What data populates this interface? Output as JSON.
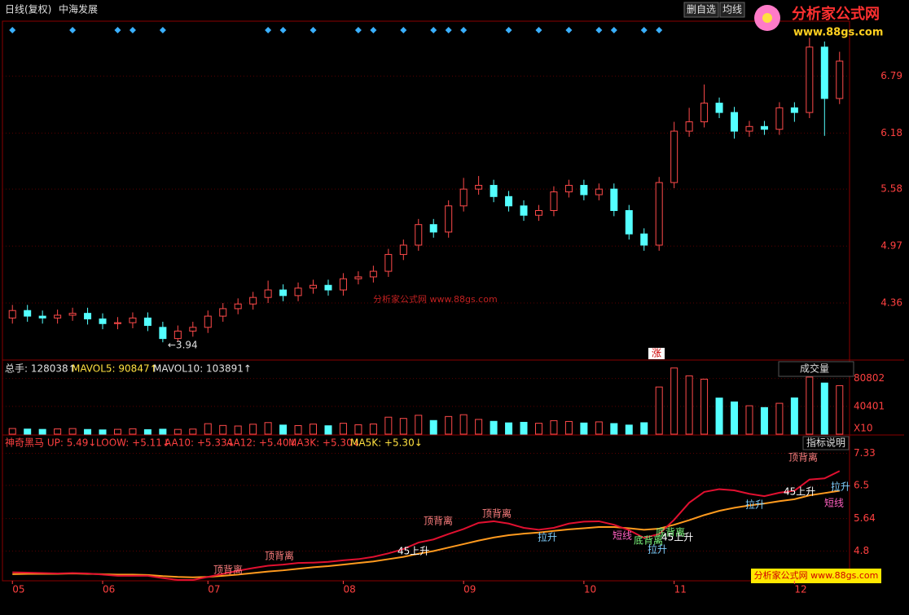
{
  "header": {
    "period": "日线(复权)",
    "stock": "中海发展",
    "btn_fav": "删自选",
    "btn_ma": "均线",
    "logo": "分析家公式网",
    "logo_url": "www.88gs.com",
    "watermark": "分析家公式网 www.88gs.com",
    "footer_brand": "分析家公式网 www.88gs.com"
  },
  "chart_data": [
    {
      "type": "candlestick",
      "low_label": "←3.94",
      "event_label": "涨",
      "categories": [
        "05",
        null,
        null,
        null,
        null,
        null,
        "06",
        null,
        null,
        null,
        null,
        null,
        null,
        "07",
        null,
        null,
        null,
        null,
        null,
        null,
        null,
        null,
        "08",
        null,
        null,
        null,
        null,
        null,
        null,
        null,
        "09",
        null,
        null,
        null,
        null,
        null,
        null,
        null,
        "10",
        null,
        null,
        null,
        null,
        null,
        "11",
        null,
        null,
        null,
        null,
        null,
        null,
        null,
        "12",
        null,
        null,
        null
      ],
      "open": [
        4.2,
        4.28,
        4.22,
        4.2,
        4.23,
        4.25,
        4.19,
        4.14,
        4.15,
        4.2,
        4.1,
        3.98,
        4.06,
        4.1,
        4.22,
        4.3,
        4.35,
        4.42,
        4.5,
        4.44,
        4.52,
        4.55,
        4.5,
        4.62,
        4.64,
        4.7,
        4.88,
        4.98,
        5.2,
        5.12,
        5.4,
        5.58,
        5.62,
        5.5,
        5.4,
        5.3,
        5.35,
        5.55,
        5.62,
        5.52,
        5.58,
        5.35,
        5.1,
        4.98,
        5.65,
        6.2,
        6.3,
        6.5,
        6.4,
        6.2,
        6.25,
        6.22,
        6.45,
        6.4,
        7.1,
        6.55
      ],
      "high": [
        4.34,
        4.34,
        4.28,
        4.29,
        4.31,
        4.31,
        4.25,
        4.21,
        4.26,
        4.26,
        4.16,
        4.12,
        4.16,
        4.28,
        4.36,
        4.41,
        4.48,
        4.6,
        4.56,
        4.58,
        4.61,
        4.61,
        4.68,
        4.7,
        4.76,
        4.94,
        5.04,
        5.26,
        5.26,
        5.46,
        5.7,
        5.72,
        5.68,
        5.56,
        5.46,
        5.41,
        5.61,
        5.68,
        5.68,
        5.64,
        5.64,
        5.41,
        5.16,
        5.71,
        6.3,
        6.45,
        6.7,
        6.56,
        6.46,
        6.31,
        6.31,
        6.51,
        6.51,
        7.2,
        7.16,
        7.05
      ],
      "low": [
        4.14,
        4.16,
        4.14,
        4.14,
        4.17,
        4.13,
        4.08,
        4.08,
        4.09,
        4.06,
        3.94,
        3.95,
        4.0,
        4.04,
        4.16,
        4.24,
        4.29,
        4.36,
        4.38,
        4.38,
        4.46,
        4.44,
        4.44,
        4.56,
        4.58,
        4.64,
        4.82,
        4.92,
        5.06,
        5.06,
        5.34,
        5.52,
        5.44,
        5.34,
        5.24,
        5.24,
        5.29,
        5.49,
        5.46,
        5.46,
        5.29,
        5.04,
        4.92,
        4.92,
        5.59,
        6.14,
        6.24,
        6.34,
        6.12,
        6.14,
        6.16,
        6.16,
        6.3,
        6.34,
        6.15,
        6.49
      ],
      "close": [
        4.28,
        4.22,
        4.2,
        4.23,
        4.25,
        4.19,
        4.14,
        4.15,
        4.2,
        4.12,
        3.98,
        4.06,
        4.1,
        4.22,
        4.3,
        4.35,
        4.42,
        4.5,
        4.44,
        4.52,
        4.55,
        4.5,
        4.62,
        4.64,
        4.7,
        4.88,
        4.98,
        5.2,
        5.12,
        5.4,
        5.58,
        5.62,
        5.5,
        5.4,
        5.3,
        5.35,
        5.55,
        5.62,
        5.52,
        5.58,
        5.35,
        5.1,
        4.98,
        5.65,
        6.2,
        6.3,
        6.5,
        6.4,
        6.2,
        6.25,
        6.22,
        6.45,
        6.4,
        7.1,
        6.55,
        6.95
      ],
      "up_color": "#ff4a4a",
      "down_color": "#54ffff",
      "ylim": [
        3.75,
        7.36
      ],
      "yticks": [
        6.79,
        6.18,
        5.58,
        4.97,
        4.36
      ],
      "grid": true
    },
    {
      "type": "bar",
      "legend": [
        "总手: 128038↑",
        "MAVOL5: 90847↑",
        "MAVOL10: 103891↑"
      ],
      "selector": "成交量",
      "unit": "X10",
      "values": [
        8200,
        7400,
        6900,
        7600,
        8100,
        6800,
        6200,
        7000,
        7800,
        6500,
        7200,
        6900,
        7400,
        15200,
        12600,
        11800,
        14400,
        16800,
        13200,
        12400,
        14600,
        12200,
        15800,
        13600,
        14800,
        24600,
        22800,
        27400,
        19800,
        25600,
        28200,
        21400,
        18600,
        16400,
        17200,
        15800,
        19600,
        18400,
        16200,
        17800,
        15400,
        13200,
        16600,
        68400,
        96000,
        84600,
        79800,
        52400,
        46800,
        41200,
        38600,
        44800,
        52600,
        82800,
        74200,
        70400
      ],
      "ylim": [
        0,
        104000
      ],
      "yticks": [
        80802,
        40401
      ]
    },
    {
      "type": "line",
      "legend": [
        "神奇黑马 UP: 5.49↓",
        "LOOW: +5.11↓",
        "AA10: +5.33↓",
        "AA12: +5.40↓",
        "MA3K: +5.30↓",
        "MA5K: +5.30↓"
      ],
      "help": "指标说明",
      "annotations": [
        "顶背离",
        "顶背离",
        "顶背离",
        "顶背离",
        "顶背离",
        "底背离",
        "底背离",
        "拉升",
        "拉升",
        "拉升",
        "拉升",
        "45上升",
        "45上升",
        "45上升",
        "短线",
        "短线"
      ],
      "series": [
        {
          "name": "AA10",
          "color": "#ff9a1e",
          "values": [
            4.2,
            4.21,
            4.21,
            4.21,
            4.22,
            4.21,
            4.2,
            4.19,
            4.19,
            4.18,
            4.15,
            4.13,
            4.12,
            4.13,
            4.16,
            4.19,
            4.23,
            4.27,
            4.3,
            4.34,
            4.38,
            4.41,
            4.45,
            4.49,
            4.53,
            4.59,
            4.65,
            4.73,
            4.8,
            4.89,
            4.98,
            5.07,
            5.15,
            5.21,
            5.25,
            5.28,
            5.32,
            5.36,
            5.39,
            5.42,
            5.42,
            5.39,
            5.35,
            5.38,
            5.48,
            5.6,
            5.73,
            5.84,
            5.92,
            5.98,
            6.03,
            6.09,
            6.14,
            6.24,
            6.3,
            6.36
          ]
        },
        {
          "name": "MA3K",
          "color": "#e01030",
          "values": [
            4.25,
            4.24,
            4.23,
            4.22,
            4.23,
            4.22,
            4.19,
            4.16,
            4.16,
            4.16,
            4.1,
            4.05,
            4.05,
            4.13,
            4.21,
            4.29,
            4.36,
            4.42,
            4.45,
            4.49,
            4.5,
            4.52,
            4.56,
            4.59,
            4.65,
            4.74,
            4.85,
            5.02,
            5.1,
            5.24,
            5.37,
            5.53,
            5.57,
            5.51,
            5.4,
            5.35,
            5.4,
            5.51,
            5.56,
            5.57,
            5.48,
            5.34,
            5.14,
            5.24,
            5.61,
            6.05,
            6.33,
            6.4,
            6.37,
            6.28,
            6.22,
            6.31,
            6.36,
            6.65,
            6.68,
            6.87
          ]
        }
      ],
      "ylim": [
        4.03,
        7.74
      ],
      "yticks": [
        7.33,
        6.5,
        5.64,
        4.8
      ]
    }
  ]
}
